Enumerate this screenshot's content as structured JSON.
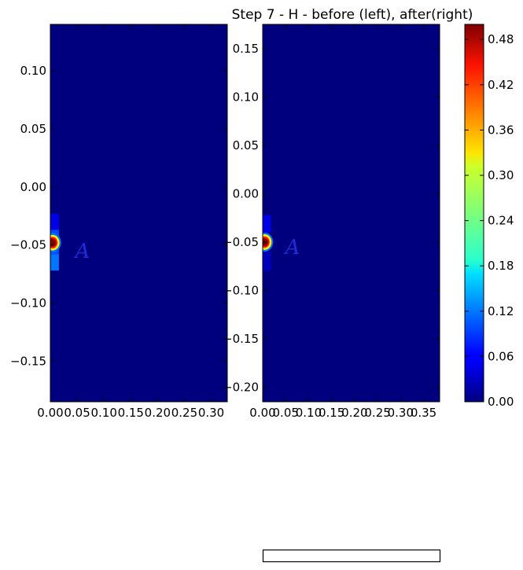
{
  "chart_data": {
    "type": "heatmap",
    "title": "Step 7 - H - before (left), after(right)",
    "colormap": "jet",
    "background_color": "#00007f",
    "panels": [
      {
        "name": "before",
        "xlim": [
          0.0,
          0.33
        ],
        "ylim": [
          -0.185,
          0.14
        ],
        "x_ticks": [
          0.0,
          0.05,
          0.1,
          0.15,
          0.2,
          0.25,
          0.3
        ],
        "x_tick_labels": [
          "0.00",
          "0.05",
          "0.10",
          "0.15",
          "0.20",
          "0.25",
          "0.30"
        ],
        "y_ticks": [
          0.1,
          0.05,
          0.0,
          -0.05,
          -0.1,
          -0.15
        ],
        "y_tick_labels": [
          "0.10",
          "0.05",
          "0.00",
          "−0.05",
          "−0.10",
          "−0.15"
        ],
        "annotation": {
          "text": "A",
          "x": 0.06,
          "y": -0.055
        },
        "cells": [
          {
            "x0": 0.0,
            "x1": 0.016,
            "y0": -0.037,
            "y1": -0.023,
            "value": 0.05
          },
          {
            "x0": 0.0,
            "x1": 0.016,
            "y0": -0.058,
            "y1": -0.037,
            "value": 0.1
          },
          {
            "x0": 0.0,
            "x1": 0.016,
            "y0": -0.072,
            "y1": -0.058,
            "value": 0.12
          }
        ],
        "hotspot": {
          "x": 0.004,
          "y": -0.048,
          "peak": 0.5
        }
      },
      {
        "name": "after",
        "xlim": [
          0.0,
          0.385
        ],
        "ylim": [
          -0.215,
          0.175
        ],
        "x_ticks": [
          0.0,
          0.05,
          0.1,
          0.15,
          0.2,
          0.25,
          0.3,
          0.35
        ],
        "x_tick_labels": [
          "0.00",
          "0.05",
          "0.10",
          "0.15",
          "0.20",
          "0.25",
          "0.30",
          "0.35"
        ],
        "y_ticks": [
          0.15,
          0.1,
          0.05,
          0.0,
          -0.05,
          -0.1,
          -0.15,
          -0.2
        ],
        "y_tick_labels": [
          "0.15",
          "0.10",
          "0.05",
          "0.00",
          "−0.05",
          "−0.10",
          "−0.15",
          "−0.20"
        ],
        "annotation": {
          "text": "A",
          "x": 0.065,
          "y": -0.055
        },
        "cells": [
          {
            "x0": 0.0,
            "x1": 0.018,
            "y0": -0.04,
            "y1": -0.022,
            "value": 0.05
          },
          {
            "x0": 0.0,
            "x1": 0.018,
            "y0": -0.08,
            "y1": -0.06,
            "value": 0.03
          }
        ],
        "hotspot": {
          "x": 0.004,
          "y": -0.05,
          "peak": 0.5
        }
      }
    ],
    "colorbar": {
      "range": [
        0.0,
        0.5
      ],
      "ticks": [
        0.0,
        0.06,
        0.12,
        0.18,
        0.24,
        0.3,
        0.36,
        0.42,
        0.48
      ],
      "tick_labels": [
        "0.00",
        "0.06",
        "0.12",
        "0.18",
        "0.24",
        "0.30",
        "0.36",
        "0.42",
        "0.48"
      ]
    }
  }
}
